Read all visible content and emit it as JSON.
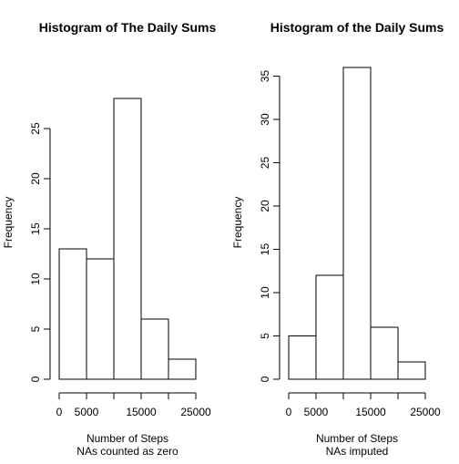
{
  "chart_data": [
    {
      "type": "bar",
      "title": "Histogram of The Daily Sums",
      "xlabel": "Number of Steps",
      "sublabel": "NAs counted as zero",
      "ylabel": "Frequency",
      "bins": [
        [
          0,
          5000
        ],
        [
          5000,
          10000
        ],
        [
          10000,
          15000
        ],
        [
          15000,
          20000
        ],
        [
          20000,
          25000
        ]
      ],
      "values": [
        13,
        12,
        28,
        6,
        2
      ],
      "xlim": [
        0,
        25000
      ],
      "ylim": [
        0,
        28
      ],
      "xticks": [
        0,
        5000,
        10000,
        15000,
        20000,
        25000
      ],
      "xtick_labels": [
        "0",
        "5000",
        "",
        "15000",
        "",
        "25000"
      ],
      "yticks": [
        0,
        5,
        10,
        15,
        20,
        25
      ],
      "ytick_labels": [
        "0",
        "5",
        "10",
        "15",
        "20",
        "25"
      ],
      "grid": false,
      "legend": "none"
    },
    {
      "type": "bar",
      "title": "Histogram of the Daily Sums",
      "xlabel": "Number of Steps",
      "sublabel": "NAs imputed",
      "ylabel": "Frequency",
      "bins": [
        [
          0,
          5000
        ],
        [
          5000,
          10000
        ],
        [
          10000,
          15000
        ],
        [
          15000,
          20000
        ],
        [
          20000,
          25000
        ]
      ],
      "values": [
        5,
        12,
        36,
        6,
        2
      ],
      "xlim": [
        0,
        25000
      ],
      "ylim": [
        0,
        36
      ],
      "xticks": [
        0,
        5000,
        10000,
        15000,
        20000,
        25000
      ],
      "xtick_labels": [
        "0",
        "5000",
        "",
        "15000",
        "",
        "25000"
      ],
      "yticks": [
        0,
        5,
        10,
        15,
        20,
        25,
        30,
        35
      ],
      "ytick_labels": [
        "0",
        "5",
        "10",
        "15",
        "20",
        "25",
        "30",
        "35"
      ],
      "grid": false,
      "legend": "none"
    }
  ]
}
